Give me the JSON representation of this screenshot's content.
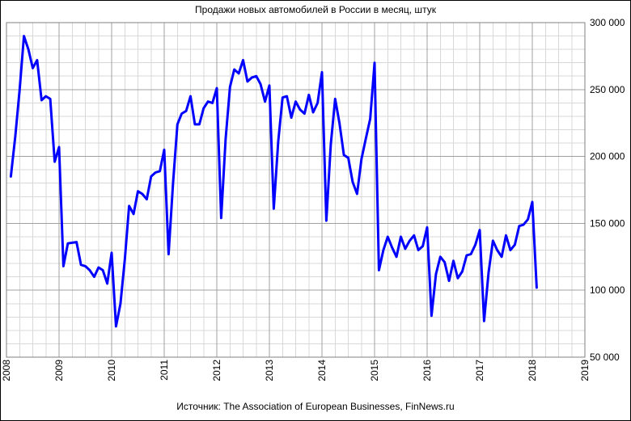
{
  "chart_data": {
    "type": "line",
    "title": "Продажи новых автомобилей в России в месяц, штук",
    "source": "Источник: The Association of European Businesses, FinNews.ru",
    "xlabel": "",
    "ylabel": "",
    "x_ticks": [
      "2008",
      "2009",
      "2010",
      "2011",
      "2012",
      "2013",
      "2014",
      "2015",
      "2016",
      "2017",
      "2018",
      "2019"
    ],
    "y_ticks": [
      "50 000",
      "100 000",
      "150 000",
      "200 000",
      "250 000",
      "300 000"
    ],
    "y_tick_values": [
      50000,
      100000,
      150000,
      200000,
      250000,
      300000
    ],
    "xlim": [
      2008,
      2019
    ],
    "ylim": [
      50000,
      300000
    ],
    "grid": true,
    "y_axis_side": "right",
    "x_tick_rotation": "vertical",
    "series": [
      {
        "name": "",
        "color": "#0000ff",
        "x": [
          2008.083,
          2008.167,
          2008.25,
          2008.333,
          2008.417,
          2008.5,
          2008.583,
          2008.667,
          2008.75,
          2008.833,
          2008.917,
          2009.0,
          2009.083,
          2009.167,
          2009.25,
          2009.333,
          2009.417,
          2009.5,
          2009.583,
          2009.667,
          2009.75,
          2009.833,
          2009.917,
          2010.0,
          2010.083,
          2010.167,
          2010.25,
          2010.333,
          2010.417,
          2010.5,
          2010.583,
          2010.667,
          2010.75,
          2010.833,
          2010.917,
          2011.0,
          2011.083,
          2011.167,
          2011.25,
          2011.333,
          2011.417,
          2011.5,
          2011.583,
          2011.667,
          2011.75,
          2011.833,
          2011.917,
          2012.0,
          2012.083,
          2012.167,
          2012.25,
          2012.333,
          2012.417,
          2012.5,
          2012.583,
          2012.667,
          2012.75,
          2012.833,
          2012.917,
          2013.0,
          2013.083,
          2013.167,
          2013.25,
          2013.333,
          2013.417,
          2013.5,
          2013.583,
          2013.667,
          2013.75,
          2013.833,
          2013.917,
          2014.0,
          2014.083,
          2014.167,
          2014.25,
          2014.333,
          2014.417,
          2014.5,
          2014.583,
          2014.667,
          2014.75,
          2014.833,
          2014.917,
          2015.0,
          2015.083,
          2015.167,
          2015.25,
          2015.333,
          2015.417,
          2015.5,
          2015.583,
          2015.667,
          2015.75,
          2015.833,
          2015.917,
          2016.0,
          2016.083,
          2016.167,
          2016.25,
          2016.333,
          2016.417,
          2016.5,
          2016.583,
          2016.667,
          2016.75,
          2016.833,
          2016.917,
          2017.0,
          2017.083,
          2017.167,
          2017.25,
          2017.333,
          2017.417,
          2017.5,
          2017.583,
          2017.667,
          2017.75,
          2017.833,
          2017.917,
          2018.0,
          2018.083
        ],
        "y": [
          185000,
          215000,
          250000,
          290000,
          280000,
          266000,
          272000,
          242000,
          245000,
          243000,
          196000,
          207000,
          118000,
          135000,
          135500,
          136000,
          119000,
          118000,
          115000,
          110000,
          117000,
          115000,
          105000,
          128000,
          73000,
          90000,
          123000,
          163000,
          157000,
          174000,
          172000,
          168000,
          185000,
          188000,
          189000,
          205000,
          127000,
          180000,
          224000,
          232000,
          234000,
          245000,
          224000,
          224000,
          236000,
          241000,
          240000,
          251000,
          154000,
          213000,
          252000,
          265000,
          262000,
          272000,
          256000,
          259000,
          260000,
          254000,
          241000,
          253000,
          161000,
          211000,
          244000,
          245000,
          229000,
          241000,
          235000,
          232000,
          246000,
          233000,
          240000,
          263000,
          152000,
          209000,
          243000,
          225000,
          201000,
          199000,
          181000,
          172000,
          198000,
          213000,
          228000,
          270000,
          115000,
          130000,
          140000,
          132000,
          125000,
          140000,
          131000,
          137000,
          141000,
          130000,
          133000,
          147000,
          81000,
          112000,
          125000,
          121000,
          107000,
          122000,
          109000,
          114000,
          126000,
          127000,
          134000,
          145000,
          77000,
          113000,
          137000,
          130000,
          125000,
          141000,
          130000,
          134000,
          148000,
          149000,
          153000,
          166000,
          102000
        ]
      }
    ]
  }
}
